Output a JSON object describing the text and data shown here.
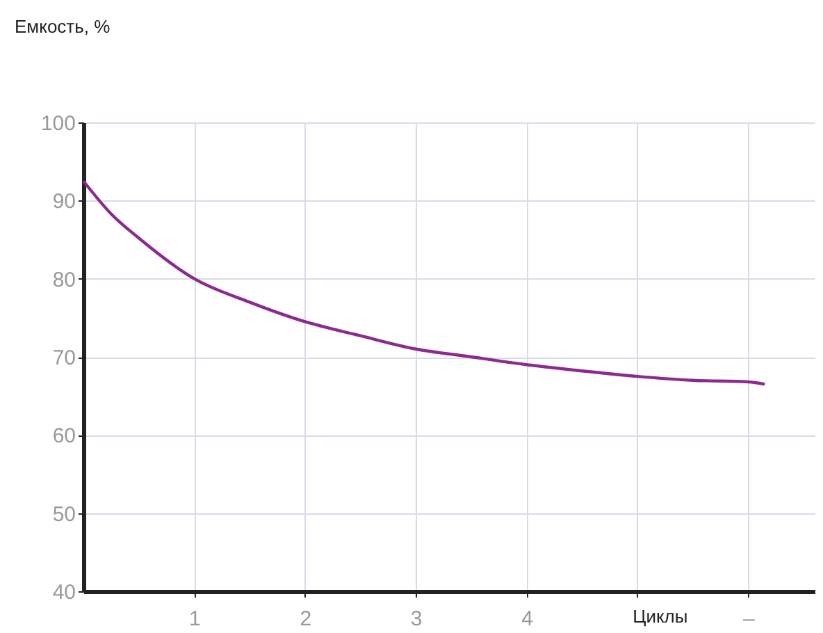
{
  "chart_data": {
    "type": "line",
    "ylabel": "Емкость, %",
    "xlabel": "Циклы",
    "x": [
      0,
      0.25,
      0.5,
      1,
      1.5,
      2,
      2.5,
      3,
      3.5,
      4,
      4.5,
      5,
      5.5,
      6,
      6.15
    ],
    "series": [
      {
        "color": "#8b2a8f",
        "values": [
          92.5,
          88.3,
          85.2,
          80,
          77,
          74.5,
          72.7,
          71,
          70,
          69,
          68.2,
          67.5,
          67,
          66.8,
          66.5
        ]
      }
    ],
    "xlim": [
      0,
      6.6
    ],
    "xticks": [
      1,
      2,
      3,
      4,
      {
        "value": 5,
        "label": null
      },
      {
        "value": 6,
        "label": "–"
      }
    ],
    "ylim": [
      40,
      100
    ],
    "yticks": [
      40,
      50,
      60,
      70,
      80,
      90,
      100
    ],
    "grid": true,
    "legend": false,
    "marker": "none",
    "line_style": "solid"
  }
}
